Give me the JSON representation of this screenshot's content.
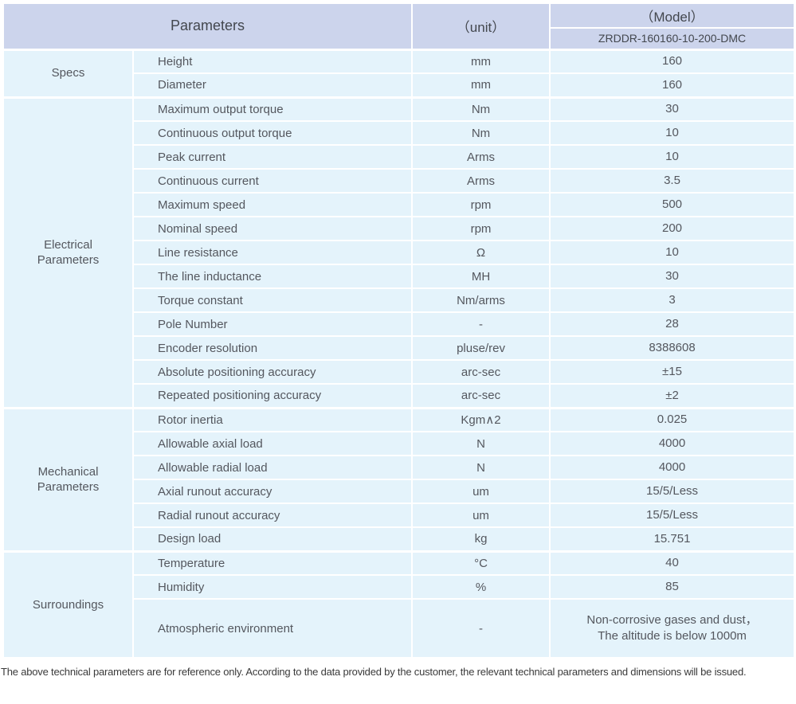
{
  "header": {
    "parameters_label": "Parameters",
    "unit_label": "（unit）",
    "model_label": "（Model）",
    "model_value": "ZRDDR-160160-10-200-DMC"
  },
  "groups": [
    {
      "category": "Specs",
      "rows": [
        {
          "name": "Height",
          "unit": "mm",
          "value": "160"
        },
        {
          "name": "Diameter",
          "unit": "mm",
          "value": "160"
        }
      ]
    },
    {
      "category": "Electrical Parameters",
      "rows": [
        {
          "name": "Maximum output torque",
          "unit": "Nm",
          "value": "30"
        },
        {
          "name": "Continuous output torque",
          "unit": "Nm",
          "value": "10"
        },
        {
          "name": "Peak current",
          "unit": "Arms",
          "value": "10"
        },
        {
          "name": "Continuous current",
          "unit": "Arms",
          "value": "3.5"
        },
        {
          "name": "Maximum speed",
          "unit": "rpm",
          "value": "500"
        },
        {
          "name": "Nominal speed",
          "unit": "rpm",
          "value": "200"
        },
        {
          "name": "Line resistance",
          "unit": "Ω",
          "value": "10"
        },
        {
          "name": "The line inductance",
          "unit": "MH",
          "value": "30"
        },
        {
          "name": "Torque constant",
          "unit": "Nm/arms",
          "value": "3"
        },
        {
          "name": "Pole Number",
          "unit": "-",
          "value": "28"
        },
        {
          "name": "Encoder resolution",
          "unit": "pluse/rev",
          "value": "8388608"
        },
        {
          "name": "Absolute positioning accuracy",
          "unit": "arc-sec",
          "value": "±15"
        },
        {
          "name": "Repeated positioning accuracy",
          "unit": "arc-sec",
          "value": "±2"
        }
      ]
    },
    {
      "category": "Mechanical Parameters",
      "rows": [
        {
          "name": "Rotor inertia",
          "unit": "Kgm∧2",
          "value": "0.025"
        },
        {
          "name": "Allowable axial load",
          "unit": "N",
          "value": "4000"
        },
        {
          "name": "Allowable radial load",
          "unit": "N",
          "value": "4000"
        },
        {
          "name": "Axial runout accuracy",
          "unit": "um",
          "value": "15/5/Less"
        },
        {
          "name": "Radial runout accuracy",
          "unit": "um",
          "value": "15/5/Less"
        },
        {
          "name": "Design load",
          "unit": "kg",
          "value": "15.751"
        }
      ]
    },
    {
      "category": "Surroundings",
      "rows": [
        {
          "name": "Temperature",
          "unit": "°C",
          "value": "40"
        },
        {
          "name": "Humidity",
          "unit": "%",
          "value": "85"
        },
        {
          "name": "Atmospheric environment",
          "unit": "-",
          "value": "Non-corrosive gases and dust，\nThe altitude is below 1000m",
          "tall": true
        }
      ]
    }
  ],
  "footer": {
    "note": "The above technical parameters are for reference only. According to the data provided by the customer, the relevant technical parameters and dimensions will be issued."
  },
  "colors": {
    "header_bg": "#ccd4ec",
    "body_bg": "#e4f3fb",
    "grid": "#ffffff",
    "header_text": "#43474e",
    "body_text": "#54575e",
    "footer_text": "#3a3a3a"
  }
}
